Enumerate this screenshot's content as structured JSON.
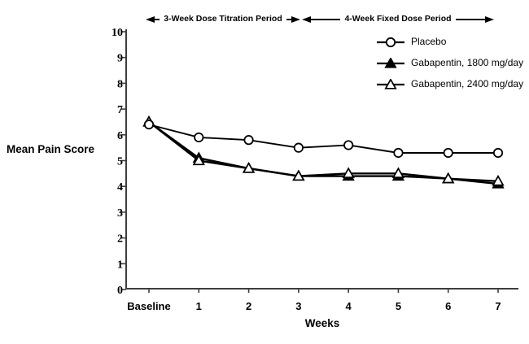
{
  "colors": {
    "series": "#000000",
    "axis": "#3d3d3d",
    "text": "#000000",
    "background": "#ffffff"
  },
  "chart_data": {
    "type": "line",
    "title": "",
    "xlabel": "Weeks",
    "ylabel": "Mean Pain Score",
    "categories": [
      "Baseline",
      "1",
      "2",
      "3",
      "4",
      "5",
      "6",
      "7"
    ],
    "series": [
      {
        "name": "Placebo",
        "marker": "open-circle",
        "values": [
          6.4,
          5.9,
          5.8,
          5.5,
          5.6,
          5.3,
          5.3,
          5.3
        ]
      },
      {
        "name": "Gabapentin, 1800 mg/day",
        "marker": "filled-triangle",
        "values": [
          6.5,
          5.1,
          4.7,
          4.4,
          4.4,
          4.4,
          4.3,
          4.1
        ]
      },
      {
        "name": "Gabapentin, 2400 mg/day",
        "marker": "open-triangle",
        "values": [
          6.5,
          5.0,
          4.7,
          4.4,
          4.5,
          4.5,
          4.3,
          4.2
        ]
      }
    ],
    "ylim": [
      0,
      10
    ],
    "yticks": [
      0,
      1,
      2,
      3,
      4,
      5,
      6,
      7,
      8,
      9,
      10
    ],
    "grid": false,
    "legend_position": "top-right",
    "x_annotations": [
      {
        "label": "3-Week Dose Titration Period",
        "from_category": "Baseline",
        "to_category": "3"
      },
      {
        "label": "4-Week Fixed Dose Period",
        "from_category": "3",
        "to_category": "7"
      }
    ]
  }
}
